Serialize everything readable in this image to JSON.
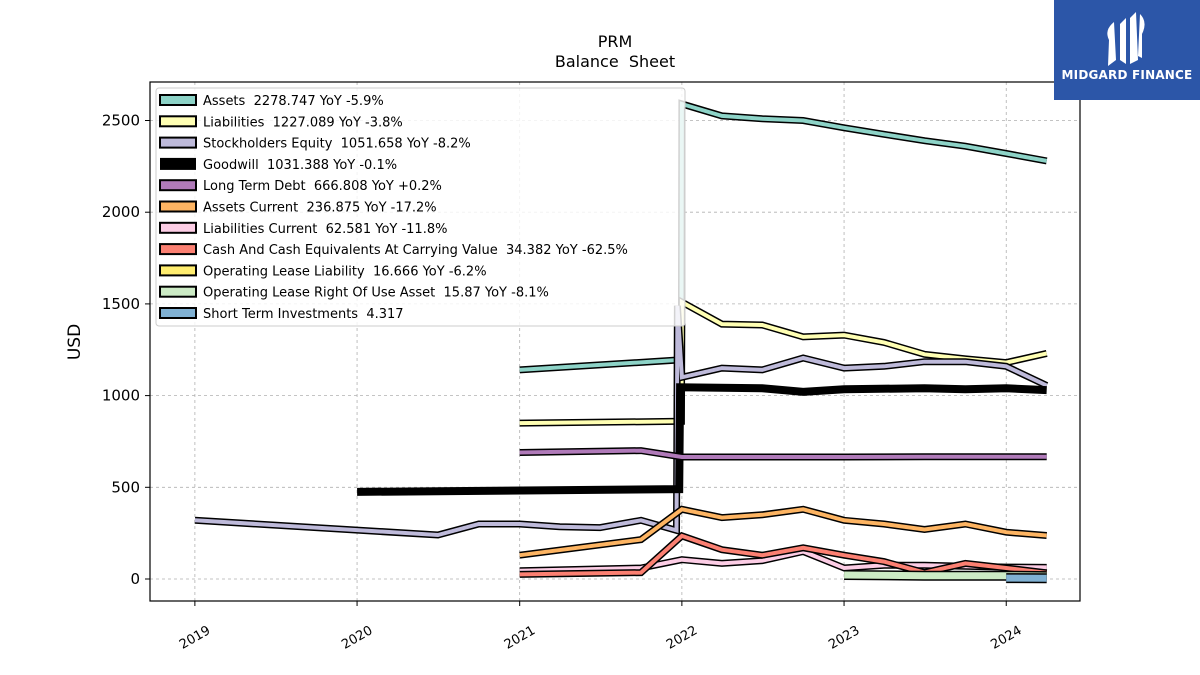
{
  "header": {
    "title": "PRM",
    "subtitle": "Balance  Sheet"
  },
  "logo": {
    "text": "MIDGARD FINANCE",
    "bg_color": "#2c56a8"
  },
  "chart_data": {
    "type": "line",
    "title": "PRM",
    "subtitle": "Balance  Sheet",
    "ylabel": "USD",
    "xlabel": "",
    "x_ticks": [
      "2019",
      "2020",
      "2021",
      "2022",
      "2023",
      "2024"
    ],
    "y_ticks": [
      0,
      500,
      1000,
      1500,
      2000,
      2500
    ],
    "xlim": [
      "2018-09-22",
      "2024-06-15"
    ],
    "ylim": [
      -120,
      2710
    ],
    "grid": true,
    "legend_position": "top-left",
    "series": [
      {
        "name": "Assets",
        "label": "Assets  2278.747 YoY -5.9%",
        "color": "#8dd3c7",
        "width": 4,
        "points": [
          [
            "2021-01-01",
            1140
          ],
          [
            "2021-12-31",
            1195
          ],
          [
            "2022-01-01",
            2590
          ],
          [
            "2022-04-01",
            2525
          ],
          [
            "2022-07-01",
            2510
          ],
          [
            "2022-10-01",
            2500
          ],
          [
            "2023-01-01",
            2460
          ],
          [
            "2023-04-01",
            2425
          ],
          [
            "2023-07-01",
            2390
          ],
          [
            "2023-10-01",
            2360
          ],
          [
            "2024-01-01",
            2320
          ],
          [
            "2024-04-01",
            2280
          ]
        ]
      },
      {
        "name": "Liabilities",
        "label": "Liabilities  1227.089 YoY -3.8%",
        "color": "#ffffb3",
        "width": 4,
        "points": [
          [
            "2021-01-01",
            850
          ],
          [
            "2021-12-31",
            860
          ],
          [
            "2022-01-01",
            1510
          ],
          [
            "2022-04-01",
            1390
          ],
          [
            "2022-07-01",
            1385
          ],
          [
            "2022-10-01",
            1320
          ],
          [
            "2023-01-01",
            1330
          ],
          [
            "2023-04-01",
            1290
          ],
          [
            "2023-07-01",
            1225
          ],
          [
            "2023-10-01",
            1200
          ],
          [
            "2024-01-01",
            1180
          ],
          [
            "2024-04-01",
            1230
          ]
        ]
      },
      {
        "name": "Stockholders Equity",
        "label": "Stockholders Equity  1051.658 YoY -8.2%",
        "color": "#bebada",
        "width": 4,
        "points": [
          [
            "2019-01-01",
            320
          ],
          [
            "2020-07-01",
            240
          ],
          [
            "2020-10-01",
            300
          ],
          [
            "2021-01-01",
            300
          ],
          [
            "2021-04-01",
            285
          ],
          [
            "2021-07-01",
            280
          ],
          [
            "2021-10-01",
            320
          ],
          [
            "2021-12-20",
            265
          ],
          [
            "2021-12-22",
            1490
          ],
          [
            "2022-01-01",
            1100
          ],
          [
            "2022-04-01",
            1150
          ],
          [
            "2022-07-01",
            1140
          ],
          [
            "2022-10-01",
            1205
          ],
          [
            "2023-01-01",
            1150
          ],
          [
            "2023-04-01",
            1160
          ],
          [
            "2023-07-01",
            1185
          ],
          [
            "2023-10-01",
            1185
          ],
          [
            "2024-01-01",
            1160
          ],
          [
            "2024-04-01",
            1055
          ]
        ]
      },
      {
        "name": "Goodwill",
        "label": "Goodwill  1031.388 YoY -0.1%",
        "color": "#000000",
        "width": 8,
        "outline": false,
        "points": [
          [
            "2020-01-01",
            475
          ],
          [
            "2021-12-26",
            490
          ],
          [
            "2021-12-28",
            1045
          ],
          [
            "2022-07-01",
            1040
          ],
          [
            "2022-10-01",
            1020
          ],
          [
            "2023-01-01",
            1035
          ],
          [
            "2023-07-01",
            1040
          ],
          [
            "2023-10-01",
            1035
          ],
          [
            "2024-01-01",
            1040
          ],
          [
            "2024-04-01",
            1030
          ]
        ]
      },
      {
        "name": "Long Term Debt",
        "label": "Long Term Debt  666.808 YoY +0.2%",
        "color": "#b07ab9",
        "width": 4,
        "points": [
          [
            "2021-01-01",
            690
          ],
          [
            "2021-10-01",
            700
          ],
          [
            "2022-01-01",
            665
          ],
          [
            "2022-07-01",
            665
          ],
          [
            "2023-01-01",
            665
          ],
          [
            "2023-07-01",
            667
          ],
          [
            "2024-04-01",
            667
          ]
        ]
      },
      {
        "name": "Assets Current",
        "label": "Assets Current  236.875 YoY -17.2%",
        "color": "#fdb462",
        "width": 4,
        "points": [
          [
            "2021-01-01",
            130
          ],
          [
            "2021-10-01",
            215
          ],
          [
            "2022-01-01",
            380
          ],
          [
            "2022-04-01",
            335
          ],
          [
            "2022-07-01",
            350
          ],
          [
            "2022-10-01",
            380
          ],
          [
            "2023-01-01",
            320
          ],
          [
            "2023-04-01",
            300
          ],
          [
            "2023-07-01",
            270
          ],
          [
            "2023-10-01",
            300
          ],
          [
            "2024-01-01",
            255
          ],
          [
            "2024-04-01",
            237
          ]
        ]
      },
      {
        "name": "Liabilities Current",
        "label": "Liabilities Current  62.581 YoY -11.8%",
        "color": "#fccde5",
        "width": 4,
        "points": [
          [
            "2021-01-01",
            45
          ],
          [
            "2021-10-01",
            60
          ],
          [
            "2022-01-01",
            105
          ],
          [
            "2022-04-01",
            85
          ],
          [
            "2022-07-01",
            100
          ],
          [
            "2022-10-01",
            150
          ],
          [
            "2023-01-01",
            60
          ],
          [
            "2023-04-01",
            75
          ],
          [
            "2023-07-01",
            75
          ],
          [
            "2023-10-01",
            70
          ],
          [
            "2024-01-01",
            65
          ],
          [
            "2024-04-01",
            63
          ]
        ]
      },
      {
        "name": "Cash And Cash Equivalents At Carrying Value",
        "label": "Cash And Cash Equivalents At Carrying Value  34.382 YoY -62.5%",
        "color": "#fb8072",
        "width": 4,
        "points": [
          [
            "2021-01-01",
            25
          ],
          [
            "2021-10-01",
            35
          ],
          [
            "2022-01-01",
            235
          ],
          [
            "2022-04-01",
            160
          ],
          [
            "2022-07-01",
            130
          ],
          [
            "2022-10-01",
            170
          ],
          [
            "2023-01-01",
            130
          ],
          [
            "2023-04-01",
            95
          ],
          [
            "2023-07-01",
            35
          ],
          [
            "2023-10-01",
            85
          ],
          [
            "2024-01-01",
            60
          ],
          [
            "2024-04-01",
            34
          ]
        ]
      },
      {
        "name": "Operating Lease Liability",
        "label": "Operating Lease Liability  16.666 YoY -6.2%",
        "color": "#ffed6f",
        "width": 4,
        "points": [
          [
            "2023-01-01",
            25
          ],
          [
            "2023-07-01",
            22
          ],
          [
            "2024-01-01",
            20
          ],
          [
            "2024-04-01",
            17
          ]
        ]
      },
      {
        "name": "Operating Lease Right Of Use Asset",
        "label": "Operating Lease Right Of Use Asset  15.87 YoY -8.1%",
        "color": "#ccebc5",
        "width": 7,
        "points": [
          [
            "2023-01-01",
            22
          ],
          [
            "2023-07-01",
            18
          ],
          [
            "2024-01-01",
            18
          ],
          [
            "2024-04-01",
            16
          ]
        ]
      },
      {
        "name": "Short Term Investments",
        "label": "Short Term Investments  4.317",
        "color": "#80b1d3",
        "width": 7,
        "points": [
          [
            "2024-01-01",
            5
          ],
          [
            "2024-04-01",
            4
          ]
        ]
      }
    ]
  }
}
